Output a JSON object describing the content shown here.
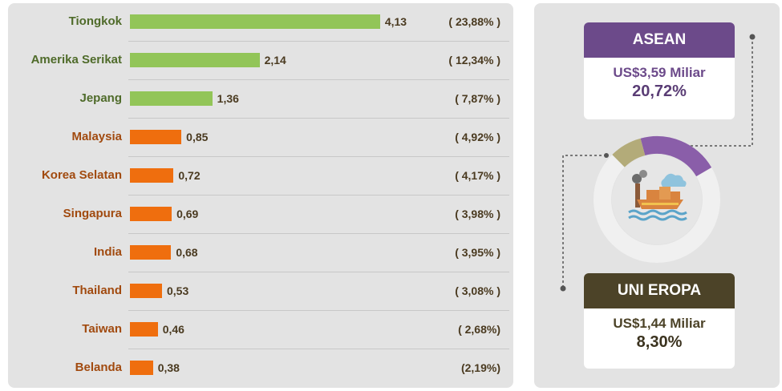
{
  "chart_data": {
    "type": "bar",
    "orientation": "horizontal",
    "categories": [
      "Tiongkok",
      "Amerika Serikat",
      "Jepang",
      "Malaysia",
      "Korea Selatan",
      "Singapura",
      "India",
      "Thailand",
      "Taiwan",
      "Belanda"
    ],
    "values": [
      4.13,
      2.14,
      1.36,
      0.85,
      0.72,
      0.69,
      0.68,
      0.53,
      0.46,
      0.38
    ],
    "value_labels": [
      "4,13",
      "2,14",
      "1,36",
      "0,85",
      "0,72",
      "0,69",
      "0,68",
      "0,53",
      "0,46",
      "0,38"
    ],
    "percent_labels": [
      "( 23,88% )",
      "( 12,34% )",
      "( 7,87% )",
      "( 4,92% )",
      "( 4,17% )",
      "( 3,98% )",
      "( 3,95% )",
      "( 3,08% )",
      "( 2,68%)",
      "(2,19%)"
    ],
    "bar_groups": [
      "green",
      "green",
      "green",
      "orange",
      "orange",
      "orange",
      "orange",
      "orange",
      "orange",
      "orange"
    ],
    "title": "",
    "xlabel": "",
    "ylabel": ""
  },
  "colors": {
    "green": "#92c558",
    "orange": "#ef6e0e",
    "label_green": "#4f6b2a",
    "label_orange": "#a14a0f",
    "asean": "#6c4a8a",
    "uni_eropa": "#4c4328",
    "ring": "#f0f0f0",
    "ring_asean": "#8a5ea9",
    "ring_eu": "#b3ab79"
  },
  "regions": {
    "asean": {
      "title": "ASEAN",
      "amount": "US$3,59 Miliar",
      "percent": "20,72%",
      "share": 20.72
    },
    "uni_eropa": {
      "title": "UNI EROPA",
      "amount": "US$1,44 Miliar",
      "percent": "8,30%",
      "share": 8.3
    }
  },
  "icon": "port-ship-icon"
}
